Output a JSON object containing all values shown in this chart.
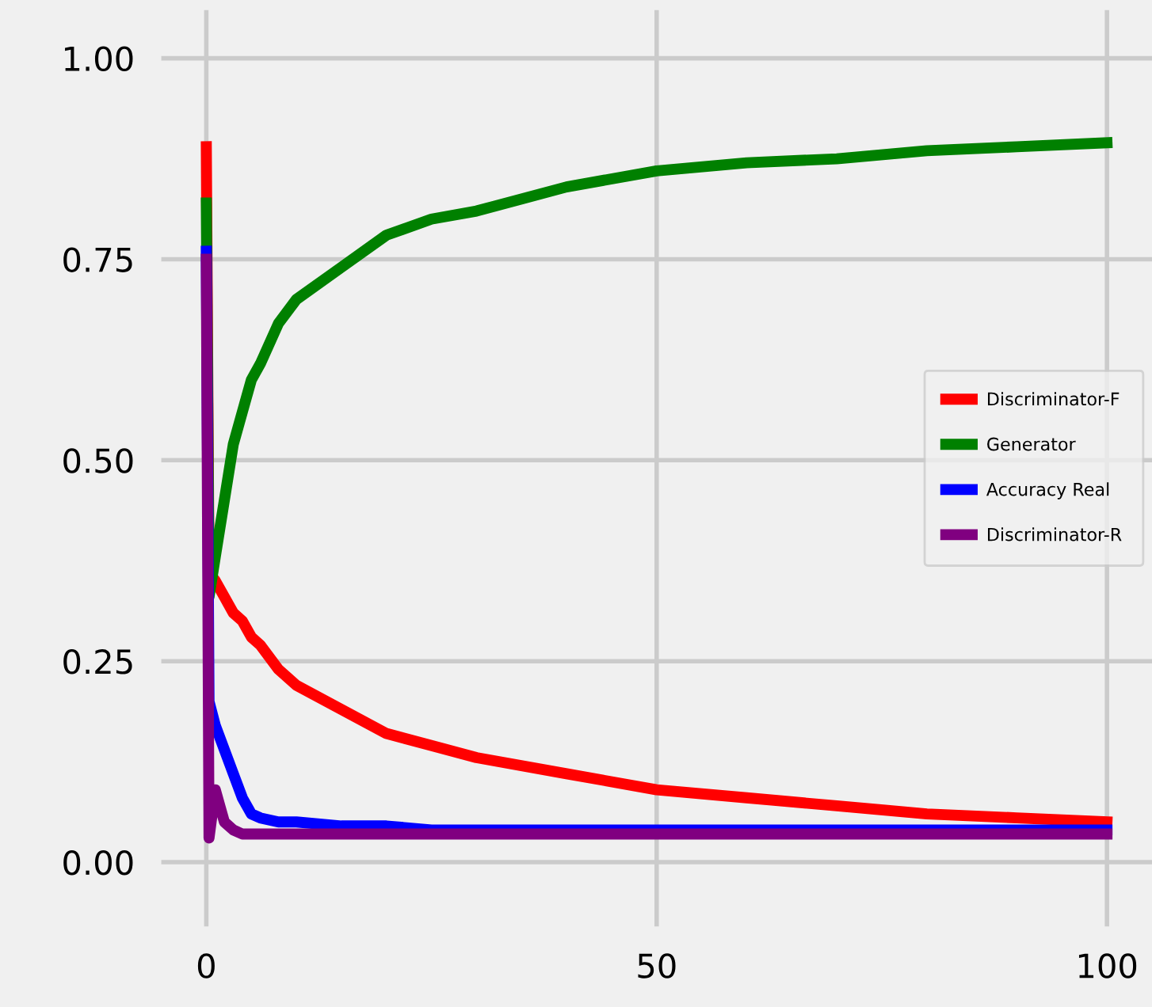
{
  "chart_data": {
    "type": "line",
    "x": [
      0,
      0.3,
      1,
      2,
      3,
      4,
      5,
      6,
      8,
      10,
      15,
      20,
      25,
      30,
      40,
      50,
      60,
      70,
      80,
      90,
      100
    ],
    "series": [
      {
        "name": "Discriminator-F",
        "color": "#ff0000",
        "values": [
          0.89,
          0.36,
          0.35,
          0.33,
          0.31,
          0.3,
          0.28,
          0.27,
          0.24,
          0.22,
          0.19,
          0.16,
          0.145,
          0.13,
          0.11,
          0.09,
          0.08,
          0.07,
          0.06,
          0.055,
          0.05
        ]
      },
      {
        "name": "Generator",
        "color": "#008000",
        "values": [
          0.82,
          0.33,
          0.38,
          0.45,
          0.52,
          0.56,
          0.6,
          0.62,
          0.67,
          0.7,
          0.74,
          0.78,
          0.8,
          0.81,
          0.84,
          0.86,
          0.87,
          0.875,
          0.885,
          0.89,
          0.895
        ]
      },
      {
        "name": "Accuracy Real",
        "color": "#0000ff",
        "values": [
          0.76,
          0.2,
          0.17,
          0.14,
          0.11,
          0.08,
          0.06,
          0.055,
          0.05,
          0.05,
          0.045,
          0.045,
          0.04,
          0.04,
          0.04,
          0.04,
          0.04,
          0.04,
          0.04,
          0.04,
          0.04
        ]
      },
      {
        "name": "Discriminator-R",
        "color": "#800080",
        "values": [
          0.75,
          0.03,
          0.09,
          0.05,
          0.04,
          0.035,
          0.035,
          0.035,
          0.035,
          0.035,
          0.035,
          0.035,
          0.035,
          0.035,
          0.035,
          0.035,
          0.035,
          0.035,
          0.035,
          0.035,
          0.035
        ]
      }
    ],
    "xlim": [
      -5,
      105
    ],
    "ylim": [
      -0.08,
      1.06
    ],
    "xticks": [
      0,
      50,
      100
    ],
    "yticks": [
      {
        "value": 0,
        "label": "0.00"
      },
      {
        "value": 0.25,
        "label": "0.25"
      },
      {
        "value": 0.5,
        "label": "0.50"
      },
      {
        "value": 0.75,
        "label": "0.75"
      },
      {
        "value": 1,
        "label": "1.00"
      }
    ],
    "grid": true,
    "legend": "center right",
    "marker": "none",
    "line_style": "solid"
  }
}
